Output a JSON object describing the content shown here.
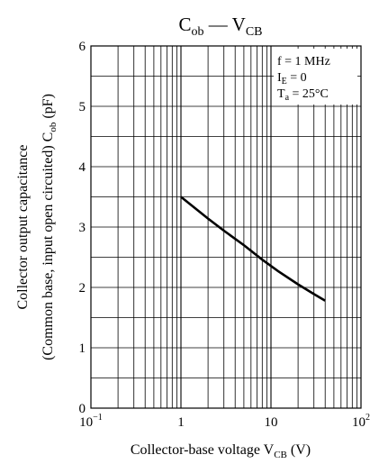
{
  "chart_data": {
    "type": "line",
    "title": {
      "main": "C",
      "main_sub": "ob",
      "dash": "—",
      "var": "V",
      "var_sub": "CB"
    },
    "xlabel": {
      "prefix": "Collector-base voltage",
      "var": "V",
      "var_sub": "CB",
      "unit": "(V)"
    },
    "ylabel": {
      "line1": "Collector output capacitance",
      "line2_prefix": "(Common base, input open circuited)",
      "var": "C",
      "var_sub": "ob",
      "unit": "(pF)"
    },
    "x_scale": "log",
    "xlim": [
      0.1,
      100
    ],
    "ylim": [
      0,
      6
    ],
    "x_ticks": [
      {
        "base": "10",
        "exp": "−1"
      },
      {
        "base": "1",
        "exp": ""
      },
      {
        "base": "10",
        "exp": ""
      },
      {
        "base": "10",
        "exp": "2"
      }
    ],
    "y_ticks": [
      "0",
      "1",
      "2",
      "3",
      "4",
      "5",
      "6"
    ],
    "grid": true,
    "annotation": {
      "l1": "f = 1 MHz",
      "l2_var": "I",
      "l2_sub": "E",
      "l2_val": "= 0",
      "l3_var": "T",
      "l3_sub": "a",
      "l3_val": "= 25°C"
    },
    "series": [
      {
        "x": [
          1.0,
          2.0,
          3.0,
          5.0,
          8.0,
          12.0,
          20.0,
          30.0,
          40.0
        ],
        "y": [
          3.5,
          3.14,
          2.94,
          2.7,
          2.46,
          2.27,
          2.05,
          1.89,
          1.78
        ]
      }
    ]
  }
}
